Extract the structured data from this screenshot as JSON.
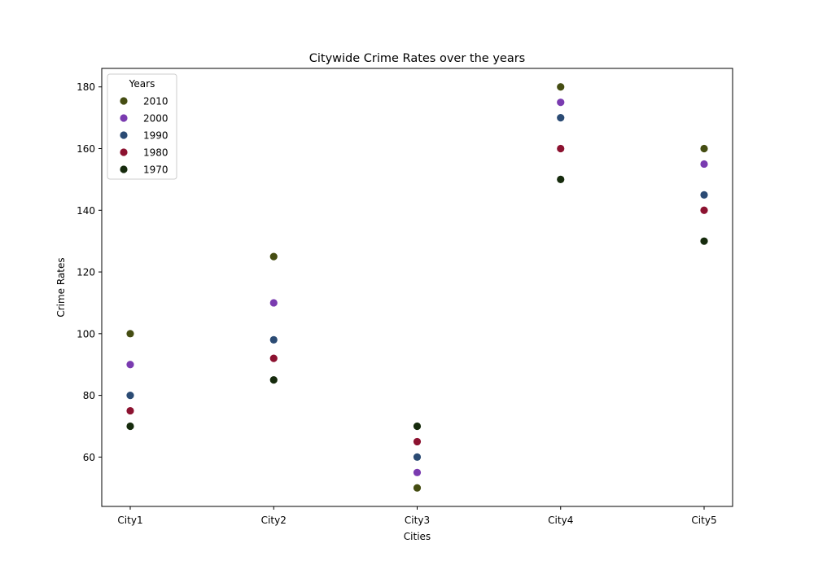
{
  "chart_data": {
    "type": "scatter",
    "title": "Citywide Crime Rates over the years",
    "xlabel": "Cities",
    "ylabel": "Crime Rates",
    "categories": [
      "City1",
      "City2",
      "City3",
      "City4",
      "City5"
    ],
    "ylim": [
      44,
      186
    ],
    "yticks": [
      60,
      80,
      100,
      120,
      140,
      160,
      180
    ],
    "grid": false,
    "legend": {
      "title": "Years",
      "placement": "top-left"
    },
    "series": [
      {
        "name": "2010",
        "color": "#454d12",
        "values": [
          100,
          125,
          50,
          180,
          160
        ]
      },
      {
        "name": "2000",
        "color": "#7a3bb0",
        "values": [
          90,
          110,
          55,
          175,
          155
        ]
      },
      {
        "name": "1990",
        "color": "#2b4b74",
        "values": [
          80,
          98,
          60,
          170,
          145
        ]
      },
      {
        "name": "1980",
        "color": "#8c1230",
        "values": [
          75,
          92,
          65,
          160,
          140
        ]
      },
      {
        "name": "1970",
        "color": "#162b0d",
        "values": [
          70,
          85,
          70,
          150,
          130
        ]
      }
    ]
  }
}
